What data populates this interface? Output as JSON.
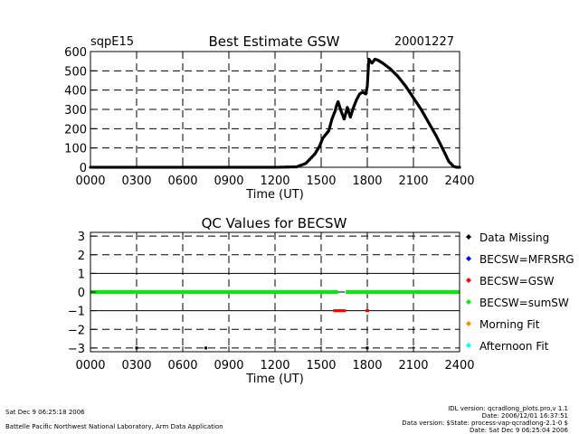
{
  "chart_data": [
    {
      "type": "scatter",
      "title": "Best Estimate GSW",
      "site": "sqpE15",
      "date": "20001227",
      "xlabel": "Time (UT)",
      "ylabel": "",
      "xlim": [
        0,
        2400
      ],
      "ylim": [
        0,
        600
      ],
      "x_ticks": [
        "0000",
        "0300",
        "0600",
        "0900",
        "1200",
        "1500",
        "1800",
        "2100",
        "2400"
      ],
      "y_ticks": [
        "0",
        "100",
        "200",
        "300",
        "400",
        "500",
        "600"
      ],
      "grid": true,
      "series": [
        {
          "color": "#000000",
          "x": [
            0,
            300,
            600,
            900,
            1200,
            1340,
            1400,
            1430,
            1460,
            1490,
            1510,
            1530,
            1550,
            1570,
            1590,
            1600,
            1610,
            1630,
            1650,
            1670,
            1690,
            1710,
            1730,
            1750,
            1770,
            1790,
            1800,
            1810,
            1830,
            1850,
            1870,
            1900,
            1950,
            2000,
            2050,
            2100,
            2150,
            2200,
            2250,
            2300,
            2330,
            2360,
            2380,
            2400
          ],
          "y": [
            0,
            0,
            0,
            0,
            0,
            2,
            20,
            45,
            70,
            110,
            150,
            170,
            190,
            250,
            290,
            320,
            340,
            290,
            250,
            310,
            260,
            310,
            350,
            380,
            390,
            380,
            420,
            560,
            540,
            560,
            555,
            540,
            510,
            470,
            420,
            360,
            300,
            230,
            160,
            80,
            30,
            5,
            0,
            0
          ]
        }
      ]
    },
    {
      "type": "scatter",
      "title": "QC Values for BECSW",
      "xlabel": "Time (UT)",
      "ylabel": "",
      "xlim": [
        0,
        2400
      ],
      "ylim": [
        -3.2,
        3.2
      ],
      "x_ticks": [
        "0000",
        "0300",
        "0600",
        "0900",
        "1200",
        "1500",
        "1800",
        "2100",
        "2400"
      ],
      "y_ticks": [
        "3",
        "2",
        "1",
        "0",
        "−1",
        "−2",
        "−3"
      ],
      "grid": true,
      "legend_position": "right",
      "series": [
        {
          "name": "Data Missing",
          "color": "#000000",
          "x": [
            300,
            750,
            1800
          ],
          "y": [
            -3,
            -3,
            -3
          ]
        },
        {
          "name": "BECSW=MFRSRG",
          "color": "#0000ff",
          "x": [],
          "y": []
        },
        {
          "name": "BECSW=GSW",
          "color": "#ff0000",
          "x": [
            1590,
            1600,
            1610,
            1620,
            1630,
            1640,
            1650,
            1800
          ],
          "y": [
            -1,
            -1,
            -1,
            -1,
            -1,
            -1,
            -1,
            -1
          ]
        },
        {
          "name": "BECSW=sumSW",
          "color": "#00ee00",
          "x_start": 0,
          "x_end": 2400,
          "gap": [
            1610,
            1660
          ],
          "y": 0
        },
        {
          "name": "Morning Fit",
          "color": "#ff8c00",
          "x": [],
          "y": []
        },
        {
          "name": "Afternoon Fit",
          "color": "#00ffff",
          "x": [],
          "y": []
        }
      ]
    }
  ],
  "footer": {
    "left_line1": "Sat Dec  9 06:25:18 2006",
    "left_line2": "Battelle Pacific Northwest National Laboratory, Arm Data Application",
    "right_line1": "IDL version: qcradlong_plots.pro,v 1.1",
    "right_line2": "Date: 2006/12/01 16:37:51",
    "right_line3": "Data version: $State: process-vap-qcradlong-2.1-0 $",
    "right_line4": "Date: Sat Dec  9 06:25:04 2006"
  }
}
